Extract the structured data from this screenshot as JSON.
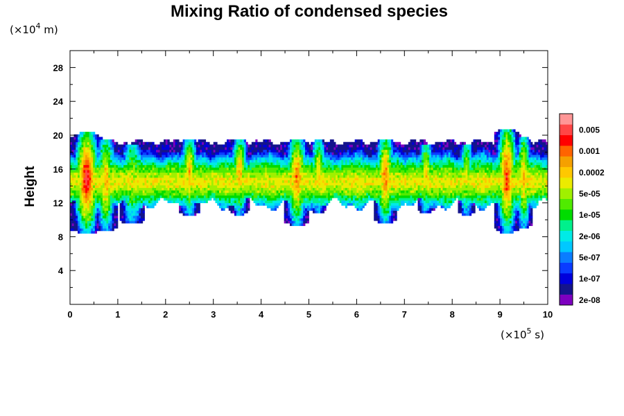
{
  "chart_data": {
    "type": "heatmap",
    "title": "Mixing Ratio of condensed species",
    "ylabel": "Height",
    "xlabel": "",
    "x_unit": {
      "prefix": "(×10",
      "exp": "5",
      "suffix": " s)"
    },
    "y_unit": {
      "prefix": "(×10",
      "exp": "4",
      "suffix": " m)"
    },
    "xlim": [
      0,
      10
    ],
    "ylim": [
      0,
      30
    ],
    "x_ticks": [
      0,
      1,
      2,
      3,
      4,
      5,
      6,
      7,
      8,
      9,
      10
    ],
    "y_ticks": [
      4,
      8,
      12,
      16,
      20,
      24,
      28
    ],
    "colorbar": {
      "colors": [
        "#7d00c0",
        "#14148c",
        "#0000dc",
        "#0a3cff",
        "#0a7dff",
        "#00c8ff",
        "#00ebe6",
        "#00f08c",
        "#00dc00",
        "#50eb00",
        "#a0f000",
        "#ebeb00",
        "#ffc800",
        "#f5a000",
        "#ff6400",
        "#ff0000",
        "#ff4646",
        "#ff9696"
      ],
      "tick_labels": [
        "2e-08",
        "1e-07",
        "5e-07",
        "2e-06",
        "1e-05",
        "5e-05",
        "0.0002",
        "0.001",
        "0.005"
      ],
      "tick_levels": [
        0.5,
        2.5,
        4.5,
        6.5,
        8.5,
        10.5,
        12.5,
        14.5,
        16.5
      ]
    },
    "field": {
      "description_level": "0-17 color level index, 0 = lowest (purple) ... 17 = highest (pink); -1 = no data (white)",
      "base_band": {
        "bottom": 11.8,
        "top": 19.2,
        "core_bottom": 13.0,
        "core_top": 16.0,
        "peak_level": 10
      },
      "deep_columns": [
        {
          "x": 0.35,
          "width": 0.55,
          "bottom": 8.4,
          "top": 20.3,
          "peak_level": 15
        },
        {
          "x": 0.75,
          "width": 0.4,
          "bottom": 8.6,
          "top": 19.5,
          "peak_level": 12
        },
        {
          "x": 1.3,
          "width": 0.45,
          "bottom": 9.5,
          "top": 19.0,
          "peak_level": 10
        },
        {
          "x": 2.5,
          "width": 0.35,
          "bottom": 10.5,
          "top": 19.5,
          "peak_level": 12
        },
        {
          "x": 3.55,
          "width": 0.35,
          "bottom": 10.6,
          "top": 19.5,
          "peak_level": 12
        },
        {
          "x": 4.75,
          "width": 0.45,
          "bottom": 9.3,
          "top": 19.5,
          "peak_level": 13
        },
        {
          "x": 5.2,
          "width": 0.3,
          "bottom": 10.8,
          "top": 19.4,
          "peak_level": 11
        },
        {
          "x": 6.6,
          "width": 0.4,
          "bottom": 9.6,
          "top": 19.6,
          "peak_level": 13
        },
        {
          "x": 7.45,
          "width": 0.3,
          "bottom": 10.8,
          "top": 19.0,
          "peak_level": 11
        },
        {
          "x": 8.3,
          "width": 0.3,
          "bottom": 10.5,
          "top": 19.0,
          "peak_level": 10
        },
        {
          "x": 9.15,
          "width": 0.45,
          "bottom": 8.5,
          "top": 20.8,
          "peak_level": 14
        },
        {
          "x": 9.5,
          "width": 0.3,
          "bottom": 9.0,
          "top": 19.8,
          "peak_level": 12
        }
      ]
    }
  }
}
